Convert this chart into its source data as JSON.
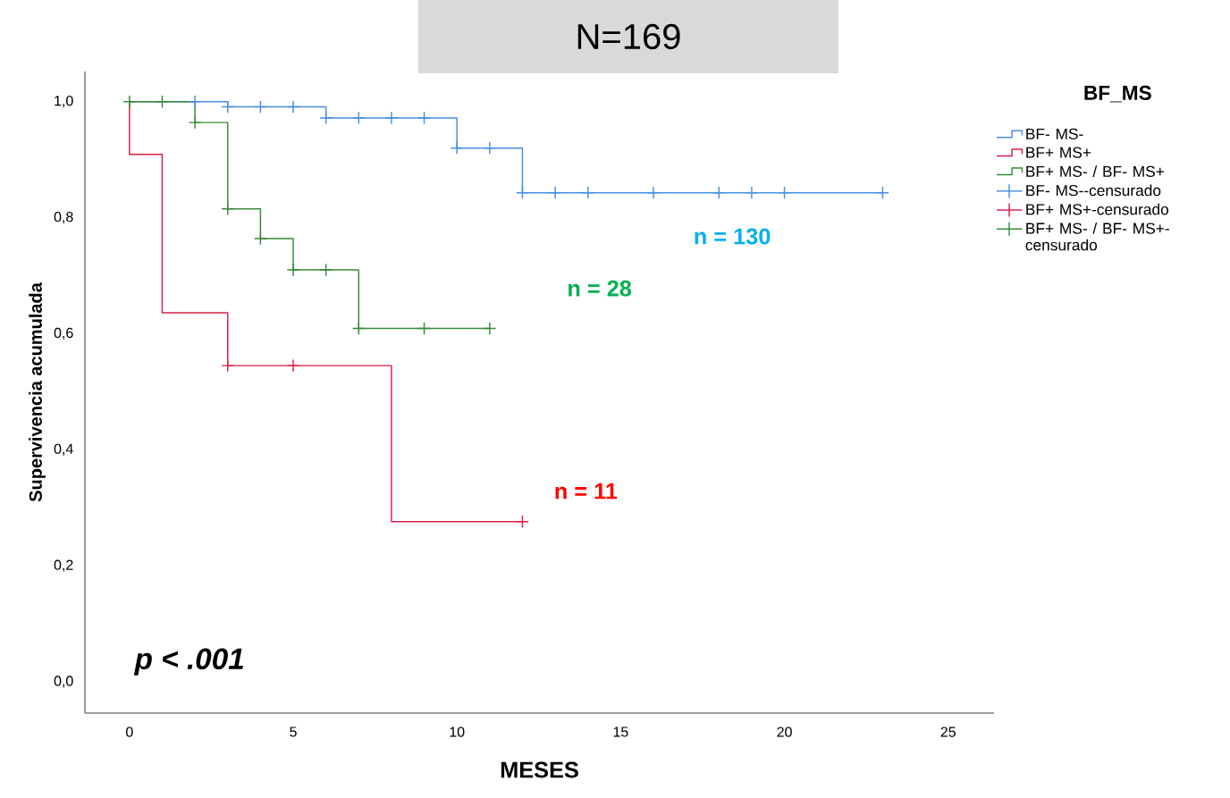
{
  "chart_data": {
    "type": "step",
    "title": "N=169",
    "xlabel": "MESES",
    "ylabel": "Supervivencia acumulada",
    "legend_title": "BF_MS",
    "legend": "right",
    "xlim": [
      -1.36,
      26.4
    ],
    "ylim": [
      -0.054,
      1.052
    ],
    "xticks": [
      0,
      5,
      10,
      15,
      20,
      25
    ],
    "yticks": [
      {
        "value": 0,
        "label": "0,0"
      },
      {
        "value": 0.2,
        "label": "0,2"
      },
      {
        "value": 0.4,
        "label": "0,4"
      },
      {
        "value": 0.6,
        "label": "0,6"
      },
      {
        "value": 0.8,
        "label": "0,8"
      },
      {
        "value": 1.0,
        "label": "1,0"
      }
    ],
    "series": [
      {
        "name": "BF- MS-",
        "color": "#4a8fe0",
        "x": [
          0,
          3,
          6,
          10,
          12,
          23
        ],
        "values": [
          1.0,
          0.991,
          0.972,
          0.92,
          0.843,
          0.843
        ]
      },
      {
        "name": "BF+ MS+",
        "color": "#dc1f4a",
        "x": [
          0,
          0,
          1,
          3,
          8,
          12
        ],
        "values": [
          1.0,
          0.909,
          0.636,
          0.545,
          0.276,
          0.276
        ]
      },
      {
        "name": "BF+ MS- / BF- MS+",
        "color": "#3a8a3a",
        "x": [
          0,
          2,
          3,
          4,
          5,
          7,
          11
        ],
        "values": [
          1.0,
          0.964,
          0.815,
          0.764,
          0.71,
          0.609,
          0.609
        ]
      },
      {
        "name": "BF- MS--censurado",
        "type": "scatter",
        "marker": "cross",
        "color": "#4a8fe0",
        "x": [
          2,
          3,
          4,
          5,
          6,
          7,
          8,
          9,
          10,
          11,
          12,
          13,
          14,
          16,
          18,
          19,
          20,
          23
        ],
        "values": [
          1.0,
          0.991,
          0.991,
          0.991,
          0.972,
          0.972,
          0.972,
          0.972,
          0.92,
          0.92,
          0.843,
          0.843,
          0.843,
          0.843,
          0.843,
          0.843,
          0.843,
          0.843
        ]
      },
      {
        "name": "BF+ MS+-censurado",
        "type": "scatter",
        "marker": "cross",
        "color": "#dc1f4a",
        "x": [
          3,
          5,
          12
        ],
        "values": [
          0.545,
          0.545,
          0.276
        ]
      },
      {
        "name": "BF+ MS- / BF- MS+-censurado",
        "type": "scatter",
        "marker": "cross",
        "color": "#3a8a3a",
        "x": [
          0,
          1,
          2,
          3,
          4,
          5,
          6,
          7,
          9,
          11
        ],
        "values": [
          1.0,
          1.0,
          0.964,
          0.815,
          0.764,
          0.71,
          0.71,
          0.609,
          0.609,
          0.609
        ]
      }
    ],
    "annotations": [
      "n = 130",
      "n = 28",
      "n = 11",
      "p < .001"
    ]
  }
}
